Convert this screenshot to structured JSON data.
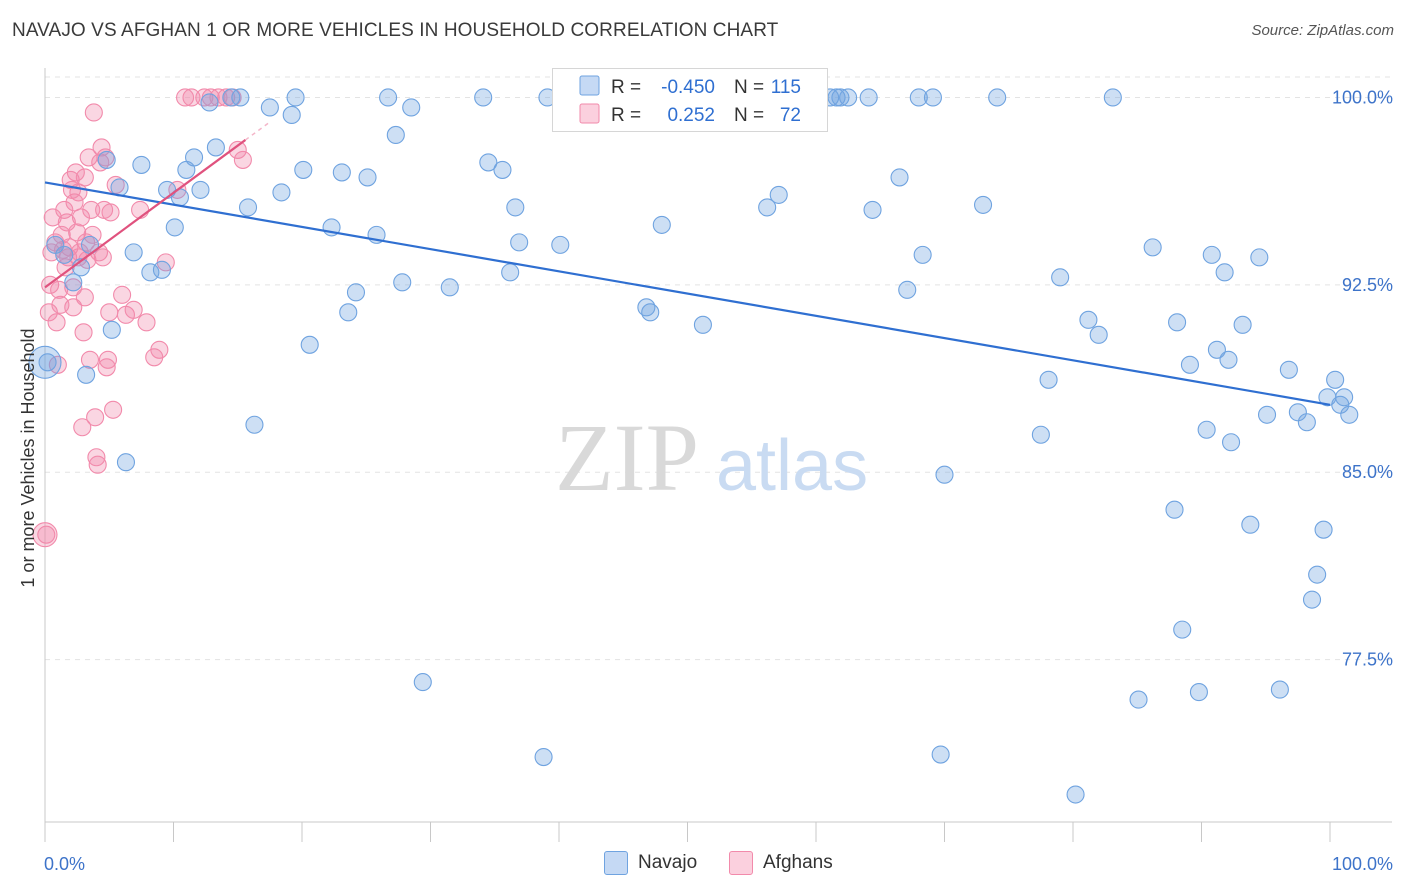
{
  "title": "NAVAJO VS AFGHAN 1 OR MORE VEHICLES IN HOUSEHOLD CORRELATION CHART",
  "source": "Source: ZipAtlas.com",
  "watermark": {
    "zip": "ZIP",
    "atlas": "atlas"
  },
  "colors": {
    "navajo": "#6fa3e0",
    "navajo_line": "#2f6fd1",
    "afghan": "#f28aab",
    "afghan_line": "#e0527e",
    "tick_text": "#3d73c9",
    "grid": "#e3e3e3"
  },
  "legend": {
    "navajo": {
      "r_label": "R =",
      "r_value": "-0.450",
      "n_label": "N =",
      "n_value": "115"
    },
    "afghan": {
      "r_label": "R =",
      "r_value": "0.252",
      "n_label": "N =",
      "n_value": "72"
    }
  },
  "bottom_legend": {
    "navajo": "Navajo",
    "afghan": "Afghans"
  },
  "chart_data": {
    "type": "scatter",
    "xlabel": "",
    "ylabel": "1 or more Vehicles in Household",
    "xlim": [
      0,
      100
    ],
    "ylim": [
      71.0,
      101.7
    ],
    "x_tick_labels": {
      "left": "0.0%",
      "right": "100.0%"
    },
    "y_ticks": [
      {
        "value": 100.0,
        "label": "100.0%"
      },
      {
        "value": 92.5,
        "label": "92.5%"
      },
      {
        "value": 85.0,
        "label": "85.0%"
      },
      {
        "value": 77.5,
        "label": "77.5%"
      }
    ],
    "series": [
      {
        "name": "Navajo",
        "trend": {
          "x": [
            0,
            100
          ],
          "y": [
            96.6,
            87.7
          ]
        },
        "points": [
          [
            0.2,
            89.4
          ],
          [
            0.8,
            94.1
          ],
          [
            1.5,
            93.7
          ],
          [
            2.2,
            92.6
          ],
          [
            2.8,
            93.2
          ],
          [
            3.2,
            88.9
          ],
          [
            3.5,
            94.1
          ],
          [
            4.8,
            97.5
          ],
          [
            5.2,
            90.7
          ],
          [
            5.8,
            96.4
          ],
          [
            6.3,
            85.4
          ],
          [
            6.9,
            93.8
          ],
          [
            7.5,
            97.3
          ],
          [
            8.2,
            93.0
          ],
          [
            9.1,
            93.1
          ],
          [
            9.5,
            96.3
          ],
          [
            10.1,
            94.8
          ],
          [
            10.5,
            96.0
          ],
          [
            11.0,
            97.1
          ],
          [
            11.6,
            97.6
          ],
          [
            12.1,
            96.3
          ],
          [
            12.8,
            99.8
          ],
          [
            13.3,
            98.0
          ],
          [
            14.5,
            100.0
          ],
          [
            15.2,
            100.0
          ],
          [
            15.8,
            95.6
          ],
          [
            16.3,
            86.9
          ],
          [
            17.5,
            99.6
          ],
          [
            18.4,
            96.2
          ],
          [
            19.2,
            99.3
          ],
          [
            19.5,
            100.0
          ],
          [
            20.1,
            97.1
          ],
          [
            20.6,
            90.1
          ],
          [
            22.3,
            94.8
          ],
          [
            23.1,
            97.0
          ],
          [
            23.6,
            91.4
          ],
          [
            24.2,
            92.2
          ],
          [
            25.1,
            96.8
          ],
          [
            25.8,
            94.5
          ],
          [
            26.7,
            100.0
          ],
          [
            27.3,
            98.5
          ],
          [
            27.8,
            92.6
          ],
          [
            28.5,
            99.6
          ],
          [
            29.4,
            76.6
          ],
          [
            31.5,
            92.4
          ],
          [
            34.1,
            100.0
          ],
          [
            34.5,
            97.4
          ],
          [
            35.6,
            97.1
          ],
          [
            36.2,
            93.0
          ],
          [
            36.6,
            95.6
          ],
          [
            36.9,
            94.2
          ],
          [
            38.8,
            73.6
          ],
          [
            39.1,
            100.0
          ],
          [
            40.1,
            94.1
          ],
          [
            40.5,
            100.0
          ],
          [
            46.3,
            100.0
          ],
          [
            46.8,
            91.6
          ],
          [
            47.1,
            91.4
          ],
          [
            48.0,
            94.9
          ],
          [
            51.2,
            90.9
          ],
          [
            54.8,
            100.0
          ],
          [
            56.2,
            95.6
          ],
          [
            57.1,
            96.1
          ],
          [
            58.1,
            100.0
          ],
          [
            61.1,
            100.0
          ],
          [
            61.6,
            100.0
          ],
          [
            61.9,
            100.0
          ],
          [
            62.5,
            100.0
          ],
          [
            64.1,
            100.0
          ],
          [
            64.4,
            95.5
          ],
          [
            66.5,
            96.8
          ],
          [
            67.1,
            92.3
          ],
          [
            68.0,
            100.0
          ],
          [
            68.3,
            93.7
          ],
          [
            69.1,
            100.0
          ],
          [
            69.7,
            73.7
          ],
          [
            70.0,
            84.9
          ],
          [
            73.0,
            95.7
          ],
          [
            74.1,
            100.0
          ],
          [
            77.5,
            86.5
          ],
          [
            78.1,
            88.7
          ],
          [
            79.0,
            92.8
          ],
          [
            80.2,
            72.1
          ],
          [
            81.2,
            91.1
          ],
          [
            82.0,
            90.5
          ],
          [
            83.1,
            100.0
          ],
          [
            85.1,
            75.9
          ],
          [
            86.2,
            94.0
          ],
          [
            87.9,
            83.5
          ],
          [
            88.1,
            91.0
          ],
          [
            88.5,
            78.7
          ],
          [
            89.1,
            89.3
          ],
          [
            89.8,
            76.2
          ],
          [
            90.4,
            86.7
          ],
          [
            90.8,
            93.7
          ],
          [
            91.2,
            89.9
          ],
          [
            91.8,
            93.0
          ],
          [
            92.1,
            89.5
          ],
          [
            92.3,
            86.2
          ],
          [
            93.2,
            90.9
          ],
          [
            93.8,
            82.9
          ],
          [
            94.5,
            93.6
          ],
          [
            95.1,
            87.3
          ],
          [
            96.1,
            76.3
          ],
          [
            96.8,
            89.1
          ],
          [
            97.5,
            87.4
          ],
          [
            98.2,
            87.0
          ],
          [
            98.6,
            79.9
          ],
          [
            99.0,
            80.9
          ],
          [
            99.5,
            82.7
          ],
          [
            99.8,
            88.0
          ],
          [
            100.4,
            88.7
          ],
          [
            100.8,
            87.7
          ],
          [
            101.1,
            88.0
          ],
          [
            101.5,
            87.3
          ]
        ]
      },
      {
        "name": "Afghans",
        "trend": {
          "x": [
            0,
            15.6
          ],
          "y": [
            92.4,
            98.3
          ]
        },
        "points": [
          [
            0.1,
            82.5
          ],
          [
            0.3,
            91.4
          ],
          [
            0.4,
            92.5
          ],
          [
            0.5,
            93.8
          ],
          [
            0.6,
            95.2
          ],
          [
            0.8,
            94.2
          ],
          [
            0.9,
            91.0
          ],
          [
            1.0,
            89.3
          ],
          [
            1.1,
            92.3
          ],
          [
            1.2,
            91.7
          ],
          [
            1.3,
            94.5
          ],
          [
            1.4,
            93.9
          ],
          [
            1.5,
            95.5
          ],
          [
            1.7,
            95.0
          ],
          [
            1.8,
            93.6
          ],
          [
            1.9,
            94.0
          ],
          [
            2.0,
            96.7
          ],
          [
            2.1,
            96.3
          ],
          [
            2.2,
            92.4
          ],
          [
            2.3,
            95.8
          ],
          [
            2.4,
            97.0
          ],
          [
            2.5,
            94.6
          ],
          [
            2.6,
            93.6
          ],
          [
            2.7,
            93.8
          ],
          [
            2.8,
            95.2
          ],
          [
            2.9,
            86.8
          ],
          [
            3.0,
            90.6
          ],
          [
            3.1,
            92.0
          ],
          [
            3.2,
            94.2
          ],
          [
            3.3,
            93.5
          ],
          [
            3.4,
            97.6
          ],
          [
            3.5,
            89.5
          ],
          [
            3.6,
            95.5
          ],
          [
            3.7,
            94.5
          ],
          [
            3.8,
            99.4
          ],
          [
            3.9,
            87.2
          ],
          [
            4.0,
            85.6
          ],
          [
            4.1,
            85.3
          ],
          [
            4.2,
            93.8
          ],
          [
            4.3,
            97.4
          ],
          [
            4.4,
            98.0
          ],
          [
            4.5,
            93.6
          ],
          [
            4.6,
            95.5
          ],
          [
            4.7,
            97.6
          ],
          [
            4.8,
            89.2
          ],
          [
            4.9,
            89.5
          ],
          [
            5.0,
            91.4
          ],
          [
            5.1,
            95.4
          ],
          [
            5.3,
            87.5
          ],
          [
            5.5,
            96.5
          ],
          [
            6.0,
            92.1
          ],
          [
            6.3,
            91.3
          ],
          [
            6.9,
            91.5
          ],
          [
            7.4,
            95.5
          ],
          [
            7.9,
            91.0
          ],
          [
            8.5,
            89.6
          ],
          [
            8.9,
            89.9
          ],
          [
            9.4,
            93.4
          ],
          [
            10.3,
            96.3
          ],
          [
            10.9,
            100.0
          ],
          [
            11.4,
            100.0
          ],
          [
            12.4,
            100.0
          ],
          [
            12.9,
            100.0
          ],
          [
            13.5,
            100.0
          ],
          [
            14.1,
            100.0
          ],
          [
            14.6,
            100.0
          ],
          [
            15.0,
            97.9
          ],
          [
            15.4,
            97.5
          ],
          [
            2.6,
            96.2
          ],
          [
            1.6,
            93.2
          ],
          [
            3.1,
            96.8
          ],
          [
            2.2,
            91.6
          ]
        ]
      }
    ]
  }
}
